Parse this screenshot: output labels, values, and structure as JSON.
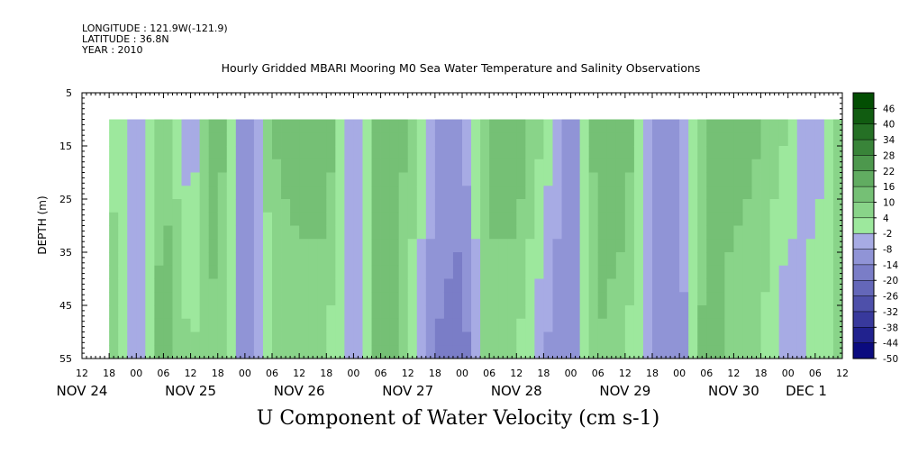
{
  "header": {
    "longitude": "LONGITUDE : 121.9W(-121.9)",
    "latitude": "LATITUDE : 36.8N",
    "year": "YEAR : 2010"
  },
  "chart_data": {
    "type": "heatmap",
    "title": "Hourly Gridded MBARI Mooring M0 Sea Water Temperature and Salinity Observations",
    "xlabel": "U Component of Water Velocity (cm s-1)",
    "ylabel": "DEPTH (m)",
    "y_range": [
      5,
      55
    ],
    "y_ticks": [
      5,
      15,
      25,
      35,
      45,
      55
    ],
    "data_depth_range": [
      10,
      55
    ],
    "x_start": "NOV 24 12:00",
    "x_end": "DEC 1 12:00",
    "data_start": "NOV 24 18:00",
    "hour_tick_labels": [
      "12",
      "18",
      "00",
      "06",
      "12",
      "18",
      "00",
      "06",
      "12",
      "18",
      "00",
      "06",
      "12",
      "18",
      "00",
      "06",
      "12",
      "18",
      "00",
      "06",
      "12",
      "18",
      "00",
      "06",
      "12",
      "18",
      "00",
      "06",
      "12"
    ],
    "day_labels": [
      "NOV 24",
      "NOV 25",
      "NOV 26",
      "NOV 27",
      "NOV 28",
      "NOV 29",
      "NOV 30",
      "DEC 1"
    ],
    "colorbar": {
      "levels": [
        48,
        46,
        40,
        34,
        28,
        22,
        16,
        10,
        4,
        -2,
        -8,
        -14,
        -20,
        -26,
        -32,
        -38,
        -44,
        -50
      ],
      "label_values": [
        46,
        40,
        34,
        28,
        22,
        16,
        10,
        4,
        -2,
        -8,
        -14,
        -20,
        -26,
        -32,
        -38,
        -44,
        -50
      ]
    },
    "series": [
      {
        "time": "NOV 24 18:00",
        "u_surface": 4,
        "u_bottom": 10
      },
      {
        "time": "NOV 25 00:00",
        "u_surface": -8,
        "u_bottom": -8
      },
      {
        "time": "NOV 25 06:00",
        "u_surface": 10,
        "u_bottom": 16
      },
      {
        "time": "NOV 25 12:00",
        "u_surface": -8,
        "u_bottom": 4
      },
      {
        "time": "NOV 25 18:00",
        "u_surface": 16,
        "u_bottom": 10
      },
      {
        "time": "NOV 26 00:00",
        "u_surface": -14,
        "u_bottom": -14
      },
      {
        "time": "NOV 26 06:00",
        "u_surface": 10,
        "u_bottom": 4
      },
      {
        "time": "NOV 26 12:00",
        "u_surface": 16,
        "u_bottom": 4
      },
      {
        "time": "NOV 26 18:00",
        "u_surface": 16,
        "u_bottom": 4
      },
      {
        "time": "NOV 27 00:00",
        "u_surface": -8,
        "u_bottom": -8
      },
      {
        "time": "NOV 27 06:00",
        "u_surface": 16,
        "u_bottom": 16
      },
      {
        "time": "NOV 27 12:00",
        "u_surface": 10,
        "u_bottom": 4
      },
      {
        "time": "NOV 27 18:00",
        "u_surface": -8,
        "u_bottom": -14
      },
      {
        "time": "NOV 28 00:00",
        "u_surface": -8,
        "u_bottom": -20
      },
      {
        "time": "NOV 28 06:00",
        "u_surface": 10,
        "u_bottom": 10
      },
      {
        "time": "NOV 28 12:00",
        "u_surface": 16,
        "u_bottom": 4
      },
      {
        "time": "NOV 28 18:00",
        "u_surface": 4,
        "u_bottom": -8
      },
      {
        "time": "NOV 29 00:00",
        "u_surface": -14,
        "u_bottom": -14
      },
      {
        "time": "NOV 29 06:00",
        "u_surface": 16,
        "u_bottom": 10
      },
      {
        "time": "NOV 29 12:00",
        "u_surface": 16,
        "u_bottom": 4
      },
      {
        "time": "NOV 29 18:00",
        "u_surface": -8,
        "u_bottom": -8
      },
      {
        "time": "NOV 30 00:00",
        "u_surface": -8,
        "u_bottom": -14
      },
      {
        "time": "NOV 30 06:00",
        "u_surface": 10,
        "u_bottom": 16
      },
      {
        "time": "NOV 30 12:00",
        "u_surface": 16,
        "u_bottom": 4
      },
      {
        "time": "NOV 30 18:00",
        "u_surface": 10,
        "u_bottom": 4
      },
      {
        "time": "DEC 1 00:00",
        "u_surface": 4,
        "u_bottom": -8
      },
      {
        "time": "DEC 1 06:00",
        "u_surface": -8,
        "u_bottom": 4
      },
      {
        "time": "DEC 1 12:00",
        "u_surface": 10,
        "u_bottom": 4
      }
    ]
  }
}
